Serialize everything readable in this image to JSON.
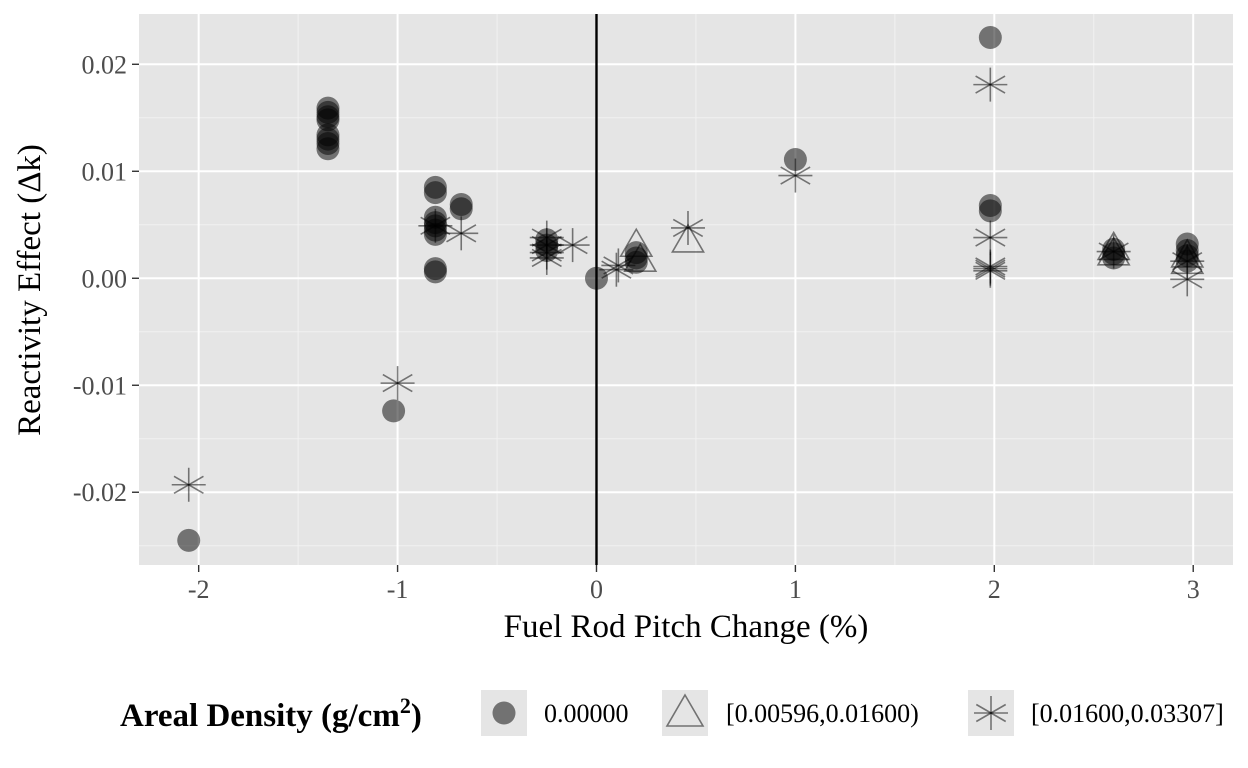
{
  "chart_data": {
    "type": "scatter",
    "title": "",
    "xlabel": "Fuel Rod Pitch Change (%)",
    "ylabel": "Reactivity Effect (Δk)",
    "xlim": [
      -2.3,
      3.2
    ],
    "ylim": [
      -0.0268,
      0.0247
    ],
    "x_ticks": [
      -2,
      -1,
      0,
      1,
      2,
      3
    ],
    "x_tick_labels": [
      "-2",
      "-1",
      "0",
      "1",
      "2",
      "3"
    ],
    "y_ticks": [
      -0.02,
      -0.01,
      0.0,
      0.01,
      0.02
    ],
    "y_tick_labels": [
      "-0.02",
      "-0.01",
      "0.00",
      "0.01",
      "0.02"
    ],
    "reference_line": {
      "x": 0
    },
    "grid": true,
    "legend": {
      "position": "bottom",
      "title": "Areal Density (g/cm",
      "title_superscript": "2",
      "title_suffix": ")",
      "entries": [
        {
          "label": "0.00000",
          "shape": "circle"
        },
        {
          "label": "[0.00596,0.01600)",
          "shape": "triangle"
        },
        {
          "label": "[0.01600,0.03307]",
          "shape": "asterisk"
        }
      ]
    },
    "series": [
      {
        "name": "0.00000",
        "shape": "circle",
        "points": [
          [
            -2.05,
            -0.0245
          ],
          [
            -1.02,
            -0.0124
          ],
          [
            -1.35,
            0.0159
          ],
          [
            -1.35,
            0.0155
          ],
          [
            -1.35,
            0.0151
          ],
          [
            -1.35,
            0.0148
          ],
          [
            -1.35,
            0.0134
          ],
          [
            -1.35,
            0.013
          ],
          [
            -1.35,
            0.0126
          ],
          [
            -1.35,
            0.0121
          ],
          [
            -0.81,
            0.0085
          ],
          [
            -0.81,
            0.008
          ],
          [
            -0.81,
            0.0057
          ],
          [
            -0.81,
            0.0052
          ],
          [
            -0.81,
            0.0049
          ],
          [
            -0.81,
            0.0045
          ],
          [
            -0.81,
            0.0041
          ],
          [
            -0.81,
            0.0009
          ],
          [
            -0.81,
            0.0006
          ],
          [
            -0.68,
            0.0069
          ],
          [
            -0.68,
            0.0065
          ],
          [
            -0.25,
            0.0036
          ],
          [
            -0.25,
            0.0031
          ],
          [
            -0.25,
            0.0026
          ],
          [
            0.0,
            0.0
          ],
          [
            0.2,
            0.0024
          ],
          [
            0.2,
            0.0019
          ],
          [
            0.2,
            0.0015
          ],
          [
            1.0,
            0.0111
          ],
          [
            1.98,
            0.0225
          ],
          [
            1.98,
            0.0068
          ],
          [
            1.98,
            0.0063
          ],
          [
            2.6,
            0.0027
          ],
          [
            2.6,
            0.0023
          ],
          [
            2.6,
            0.0019
          ],
          [
            2.97,
            0.0032
          ],
          [
            2.97,
            0.0026
          ],
          [
            2.97,
            0.0021
          ],
          [
            2.97,
            0.0016
          ]
        ]
      },
      {
        "name": "[0.00596,0.01600)",
        "shape": "triangle",
        "points": [
          [
            0.2,
            0.0029
          ],
          [
            0.22,
            0.0015
          ],
          [
            0.46,
            0.0033
          ],
          [
            2.6,
            0.0026
          ],
          [
            2.6,
            0.0021
          ],
          [
            2.97,
            0.0019
          ],
          [
            2.97,
            0.0013
          ]
        ]
      },
      {
        "name": "[0.01600,0.03307]",
        "shape": "asterisk",
        "points": [
          [
            -2.05,
            -0.0193
          ],
          [
            -1.0,
            -0.0098
          ],
          [
            -0.81,
            0.0049
          ],
          [
            -0.68,
            0.0042
          ],
          [
            -0.25,
            0.0038
          ],
          [
            -0.25,
            0.0031
          ],
          [
            -0.25,
            0.0024
          ],
          [
            -0.25,
            0.0019
          ],
          [
            -0.12,
            0.0031
          ],
          [
            0.1,
            0.0008
          ],
          [
            0.11,
            0.0012
          ],
          [
            0.46,
            0.0047
          ],
          [
            1.0,
            0.0096
          ],
          [
            1.98,
            0.0181
          ],
          [
            1.98,
            0.0038
          ],
          [
            1.98,
            0.0011
          ],
          [
            1.98,
            0.0009
          ],
          [
            1.98,
            0.0007
          ],
          [
            2.6,
            0.0025
          ],
          [
            2.97,
            0.0016
          ],
          [
            2.97,
            -0.0001
          ]
        ]
      }
    ]
  }
}
